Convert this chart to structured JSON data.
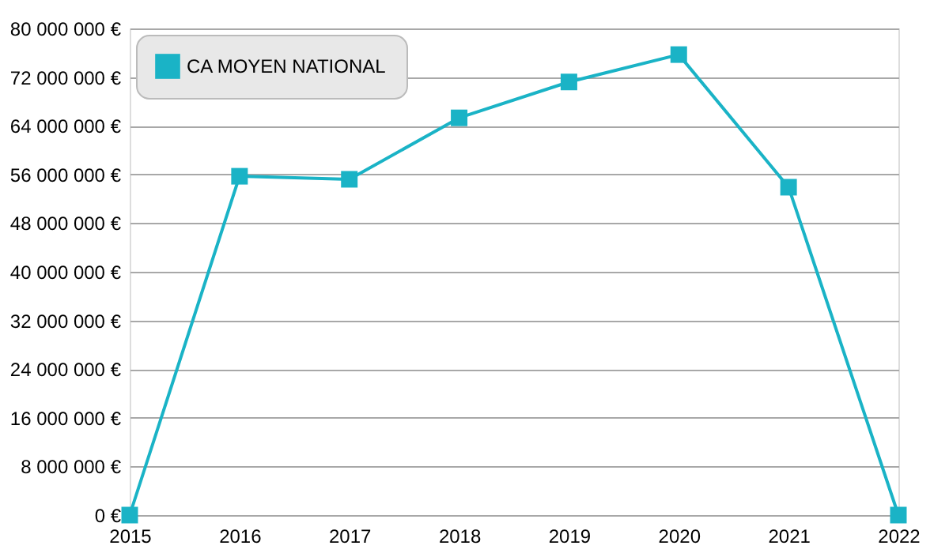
{
  "chart_data": {
    "type": "line",
    "x": [
      2015,
      2016,
      2017,
      2018,
      2019,
      2020,
      2021,
      2022
    ],
    "series": [
      {
        "name": "CA MOYEN NATIONAL",
        "color": "#1ab3c6",
        "values": [
          0,
          55700000,
          55200000,
          65300000,
          71200000,
          75700000,
          53900000,
          0
        ]
      }
    ],
    "xlim": [
      2015,
      2022
    ],
    "xticks": [
      2015,
      2016,
      2017,
      2018,
      2019,
      2020,
      2021,
      2022
    ],
    "ylim": [
      0,
      80000000
    ],
    "yticks": [
      {
        "value": 0,
        "label": "0 €"
      },
      {
        "value": 8000000,
        "label": "8 000 000 €"
      },
      {
        "value": 16000000,
        "label": "16 000 000 €"
      },
      {
        "value": 24000000,
        "label": "24 000 000 €"
      },
      {
        "value": 32000000,
        "label": "32 000 000 €"
      },
      {
        "value": 40000000,
        "label": "40 000 000 €"
      },
      {
        "value": 48000000,
        "label": "48 000 000 €"
      },
      {
        "value": 56000000,
        "label": "56 000 000 €"
      },
      {
        "value": 64000000,
        "label": "64 000 000 €"
      },
      {
        "value": 72000000,
        "label": "72 000 000 €"
      },
      {
        "value": 80000000,
        "label": "80 000 000 €"
      }
    ],
    "grid": "y",
    "legend": "top left",
    "marker": "square",
    "line_style": "solid"
  }
}
